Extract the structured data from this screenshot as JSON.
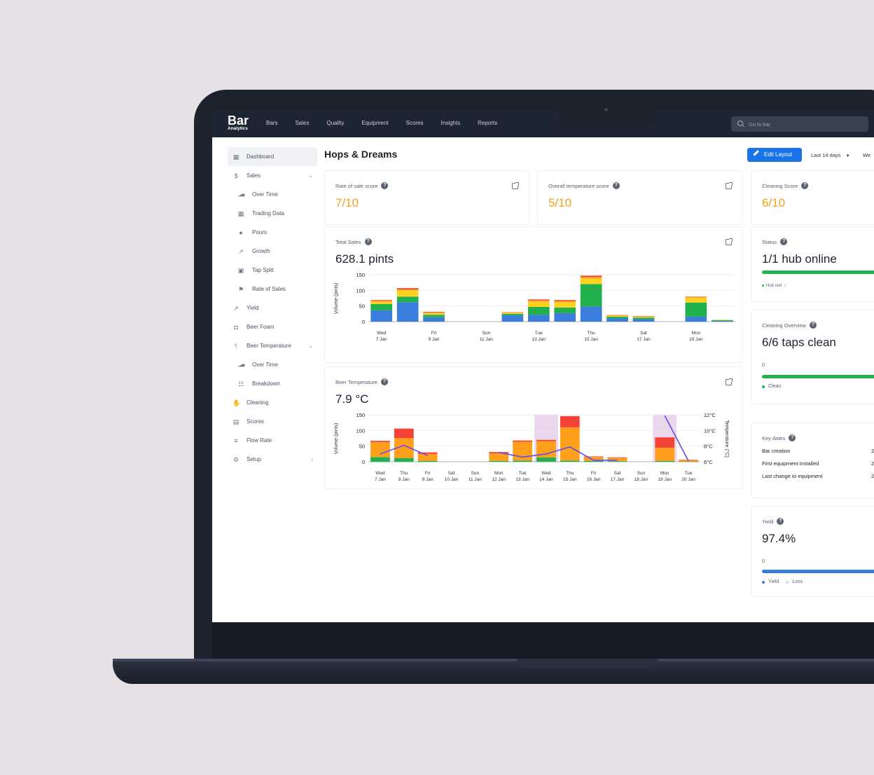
{
  "app": {
    "logo_main": "Bar",
    "logo_sub": "Analytics",
    "nav": [
      "Bars",
      "Sales",
      "Quality",
      "Equipment",
      "Scores",
      "Insights",
      "Reports"
    ],
    "search_placeholder": "Go to bar"
  },
  "sidebar": {
    "items": [
      {
        "label": "Dashboard",
        "icon": "dashboard-icon",
        "level": "top",
        "active": true
      },
      {
        "label": "Sales",
        "icon": "dollar-icon",
        "level": "top",
        "chevron": "down"
      },
      {
        "label": "Over Time",
        "icon": "bar-chart-icon",
        "level": "sub"
      },
      {
        "label": "Trading Data",
        "icon": "grid-icon",
        "level": "sub"
      },
      {
        "label": "Pours",
        "icon": "drop-icon",
        "level": "sub"
      },
      {
        "label": "Growth",
        "icon": "trend-icon",
        "level": "sub"
      },
      {
        "label": "Tap Split",
        "icon": "chart-box-icon",
        "level": "sub"
      },
      {
        "label": "Rate of Sales",
        "icon": "flag-icon",
        "level": "sub"
      },
      {
        "label": "Yield",
        "icon": "trend-icon",
        "level": "top"
      },
      {
        "label": "Beer Foam",
        "icon": "beer-icon",
        "level": "top"
      },
      {
        "label": "Beer Temperature",
        "icon": "thermometer-icon",
        "level": "top",
        "chevron": "down"
      },
      {
        "label": "Over Time",
        "icon": "bar-chart-icon",
        "level": "sub"
      },
      {
        "label": "Breakdown",
        "icon": "breakdown-icon",
        "level": "sub"
      },
      {
        "label": "Cleaning",
        "icon": "cleaning-icon",
        "level": "top"
      },
      {
        "label": "Scores",
        "icon": "scores-icon",
        "level": "top"
      },
      {
        "label": "Flow Rate",
        "icon": "flow-icon",
        "level": "top"
      },
      {
        "label": "Setup",
        "icon": "setup-icon",
        "level": "top",
        "chevron": "right"
      }
    ]
  },
  "header": {
    "title": "Hops & Dreams",
    "edit_button": "Edit Layout",
    "range": "Last 14 days",
    "range2": "We"
  },
  "cards": {
    "rate_of_sale": {
      "title": "Rate of sale score",
      "value": "7/10"
    },
    "temperature_score": {
      "title": "Overall temperature score",
      "value": "5/10"
    },
    "cleaning_score": {
      "title": "Cleaning Score",
      "value": "6/10"
    },
    "total_sales": {
      "title": "Total Sales",
      "value": "628.1 pints"
    },
    "beer_temperature": {
      "title": "Beer Temperature",
      "value": "7.9 °C"
    },
    "status": {
      "title": "Status",
      "value": "1/1 hub online",
      "legend": "Hub null",
      "progress": 1.0,
      "color": "#22b14c"
    },
    "cleaning_overview": {
      "title": "Cleaning Overview",
      "value": "6/6 taps clean",
      "zero": "0",
      "legend": "Clean",
      "progress": 1.0,
      "color": "#22b14c"
    },
    "key_dates": {
      "title": "Key dates",
      "rows": [
        {
          "label": "Bar creation",
          "value": "2"
        },
        {
          "label": "First equipment installed",
          "value": "2"
        },
        {
          "label": "Last change to equipment",
          "value": "2"
        }
      ]
    },
    "yield": {
      "title": "Yield",
      "value": "97.4%",
      "zero": "0",
      "legend_yield": "Yield",
      "legend_loss": "Loss",
      "progress": 0.974,
      "color": "#3b7ddd",
      "loss_color": "#c9dcf6"
    }
  },
  "chart_data": [
    {
      "type": "bar",
      "title": "Total Sales",
      "ylabel": "Volume (pints)",
      "ylim": [
        0,
        150
      ],
      "yticks": [
        0,
        50,
        100,
        150
      ],
      "categories": [
        "7 Jan",
        "8 Jan",
        "9 Jan",
        "10 Jan",
        "11 Jan",
        "12 Jan",
        "13 Jan",
        "14 Jan",
        "15 Jan",
        "16 Jan",
        "17 Jan",
        "18 Jan",
        "19 Jan",
        "20 Jan"
      ],
      "tick_labels": [
        {
          "day": "Wed",
          "date": "7 Jan",
          "index": 0
        },
        {
          "day": "Fri",
          "date": "9 Jan",
          "index": 2
        },
        {
          "day": "Sun",
          "date": "11 Jan",
          "index": 4
        },
        {
          "day": "Tue",
          "date": "13 Jan",
          "index": 6
        },
        {
          "day": "Thu",
          "date": "15 Jan",
          "index": 8
        },
        {
          "day": "Sat",
          "date": "17 Jan",
          "index": 10
        },
        {
          "day": "Mon",
          "date": "19 Jan",
          "index": 12
        }
      ],
      "series": [
        {
          "color": "#3b7ddd",
          "values": [
            36,
            62,
            14,
            0,
            0,
            20,
            22,
            27,
            48,
            10,
            8,
            0,
            16,
            3
          ]
        },
        {
          "color": "#22b14c",
          "values": [
            20,
            18,
            8,
            0,
            0,
            5,
            25,
            18,
            72,
            6,
            5,
            0,
            45,
            2
          ]
        },
        {
          "color": "#ffd21f",
          "values": [
            8,
            20,
            5,
            0,
            0,
            3,
            17,
            17,
            18,
            3,
            3,
            0,
            15,
            1
          ]
        },
        {
          "color": "#ff9f1c",
          "values": [
            3,
            3,
            2,
            0,
            0,
            1,
            4,
            4,
            5,
            1,
            1,
            0,
            3,
            0
          ]
        },
        {
          "color": "#f44336",
          "values": [
            2,
            4,
            2,
            0,
            0,
            1,
            3,
            3,
            4,
            1,
            1,
            0,
            1,
            0
          ]
        }
      ]
    },
    {
      "type": "bar",
      "title": "Beer Temperature",
      "ylabel": "Volume (pints)",
      "y2label": "Temperature (°C)",
      "ylim": [
        0,
        150
      ],
      "yticks": [
        0,
        50,
        100,
        150
      ],
      "y2lim": [
        6,
        12
      ],
      "y2ticks": [
        "6°C",
        "8°C",
        "10°C",
        "12°C"
      ],
      "categories": [
        {
          "day": "Wed",
          "date": "7 Jan"
        },
        {
          "day": "Thu",
          "date": "8 Jan"
        },
        {
          "day": "Fri",
          "date": "9 Jan"
        },
        {
          "day": "Sat",
          "date": "10 Jan"
        },
        {
          "day": "Sun",
          "date": "11 Jan"
        },
        {
          "day": "Mon",
          "date": "12 Jan"
        },
        {
          "day": "Tue",
          "date": "13 Jan"
        },
        {
          "day": "Wed",
          "date": "14 Jan"
        },
        {
          "day": "Thu",
          "date": "15 Jan"
        },
        {
          "day": "Fri",
          "date": "16 Jan"
        },
        {
          "day": "Sat",
          "date": "17 Jan"
        },
        {
          "day": "Sun",
          "date": "18 Jan"
        },
        {
          "day": "Mon",
          "date": "19 Jan"
        },
        {
          "day": "Tue",
          "date": "20 Jan"
        }
      ],
      "highlight_indices": [
        7,
        12
      ],
      "highlight_color": "#ead7ee",
      "series": [
        {
          "color": "#22b14c",
          "values": [
            15,
            12,
            3,
            0,
            0,
            3,
            4,
            14,
            4,
            3,
            2,
            0,
            3,
            1
          ]
        },
        {
          "color": "#ff9f1c",
          "values": [
            48,
            64,
            22,
            0,
            0,
            24,
            60,
            52,
            106,
            12,
            10,
            0,
            42,
            5
          ]
        },
        {
          "color": "#f44336",
          "values": [
            4,
            30,
            5,
            0,
            0,
            4,
            4,
            4,
            36,
            2,
            2,
            0,
            33,
            1
          ]
        }
      ],
      "temperature": {
        "color": "#5b4fe8",
        "values": [
          7.0,
          8.1,
          6.8,
          null,
          null,
          7.2,
          6.6,
          7.0,
          7.9,
          6.2,
          6.2,
          null,
          11.9,
          6.1
        ]
      }
    }
  ]
}
